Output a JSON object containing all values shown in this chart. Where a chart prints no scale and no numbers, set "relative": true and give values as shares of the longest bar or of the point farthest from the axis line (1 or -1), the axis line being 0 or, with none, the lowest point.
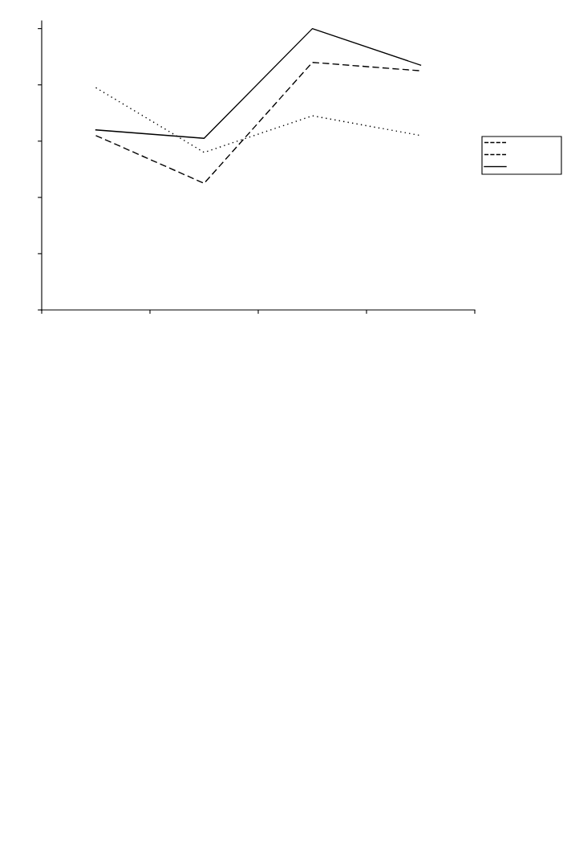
{
  "chart_data": {
    "type": "line",
    "relative": true,
    "categories": [
      null,
      null,
      null,
      null
    ],
    "grid": false,
    "marker": "none",
    "series": [
      {
        "color": "#000000",
        "line_style": "dashed",
        "values": [
          0.62,
          0.45,
          0.88,
          0.85
        ]
      },
      {
        "color": "#000000",
        "line_style": "dotted",
        "values": [
          0.79,
          0.56,
          0.69,
          0.62
        ]
      },
      {
        "color": "#000000",
        "line_style": "solid",
        "values": [
          0.64,
          0.61,
          1.0,
          0.87
        ]
      }
    ]
  }
}
